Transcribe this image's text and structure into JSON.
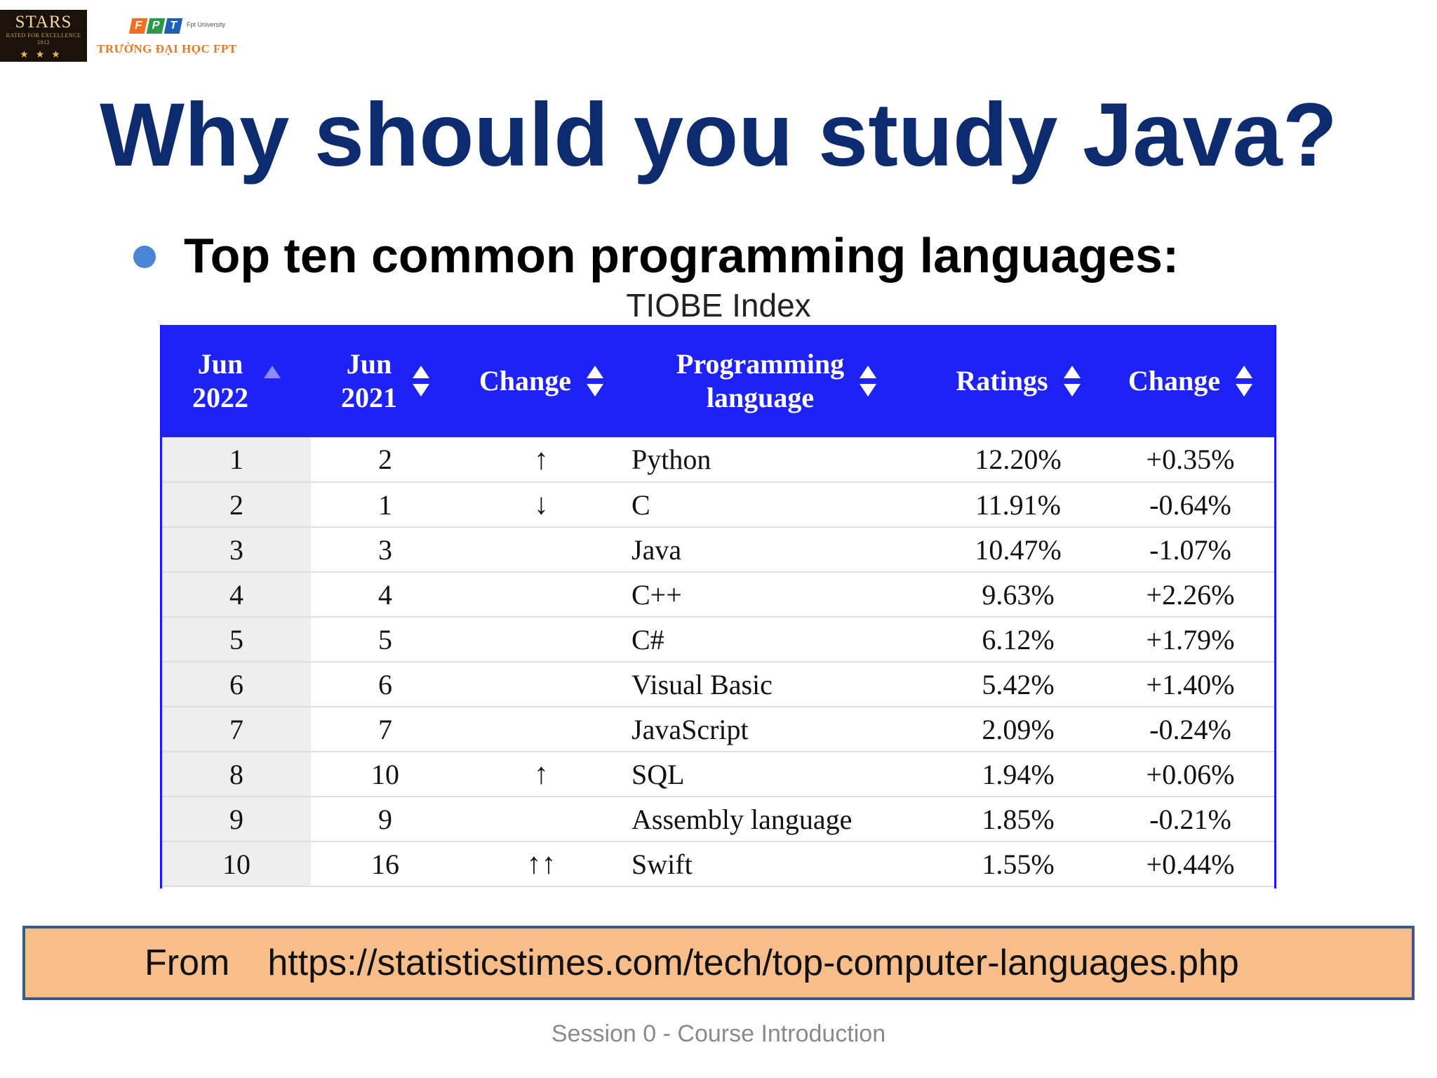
{
  "logos": {
    "stars": {
      "top": "STARS",
      "sub": "RATED FOR EXCELLENCE",
      "year": "2012",
      "stars": "★★★"
    },
    "fpt": {
      "mark": [
        "F",
        "P",
        "T"
      ],
      "uni": "Fpt University",
      "name": "TRƯỜNG ĐẠI HỌC FPT",
      "colors": [
        "#f26f21",
        "#2b9a48",
        "#1d5fb6"
      ]
    }
  },
  "slide": {
    "title": "Why should you study Java?",
    "subtitle": "Top ten common programming languages:",
    "caption": "TIOBE Index"
  },
  "table": {
    "headers": [
      {
        "lines": [
          "Jun",
          "2022"
        ],
        "sort": "asc"
      },
      {
        "lines": [
          "Jun",
          "2021"
        ],
        "sort": "both"
      },
      {
        "lines": [
          "Change"
        ],
        "sort": "both"
      },
      {
        "lines": [
          "Programming",
          "language"
        ],
        "sort": "both"
      },
      {
        "lines": [
          "Ratings"
        ],
        "sort": "both"
      },
      {
        "lines": [
          "Change"
        ],
        "sort": "both"
      }
    ],
    "rows": [
      {
        "jun2022": "1",
        "jun2021": "2",
        "change": "↑",
        "language": "Python",
        "rating": "12.20%",
        "delta": "+0.35%"
      },
      {
        "jun2022": "2",
        "jun2021": "1",
        "change": "↓",
        "language": "C",
        "rating": "11.91%",
        "delta": "-0.64%"
      },
      {
        "jun2022": "3",
        "jun2021": "3",
        "change": "",
        "language": "Java",
        "rating": "10.47%",
        "delta": "-1.07%"
      },
      {
        "jun2022": "4",
        "jun2021": "4",
        "change": "",
        "language": "C++",
        "rating": "9.63%",
        "delta": "+2.26%"
      },
      {
        "jun2022": "5",
        "jun2021": "5",
        "change": "",
        "language": "C#",
        "rating": "6.12%",
        "delta": "+1.79%"
      },
      {
        "jun2022": "6",
        "jun2021": "6",
        "change": "",
        "language": "Visual Basic",
        "rating": "5.42%",
        "delta": "+1.40%"
      },
      {
        "jun2022": "7",
        "jun2021": "7",
        "change": "",
        "language": "JavaScript",
        "rating": "2.09%",
        "delta": "-0.24%"
      },
      {
        "jun2022": "8",
        "jun2021": "10",
        "change": "↑",
        "language": "SQL",
        "rating": "1.94%",
        "delta": "+0.06%"
      },
      {
        "jun2022": "9",
        "jun2021": "9",
        "change": "",
        "language": "Assembly language",
        "rating": "1.85%",
        "delta": "-0.21%"
      },
      {
        "jun2022": "10",
        "jun2021": "16",
        "change": "↑↑",
        "language": "Swift",
        "rating": "1.55%",
        "delta": "+0.44%"
      }
    ]
  },
  "source": {
    "label": "From",
    "url": "https://statisticstimes.com/tech/top-computer-languages.php"
  },
  "footer": "Session 0 - Course Introduction",
  "colors": {
    "title": "#0d2b6e",
    "table_header": "#1e22f5",
    "source_box": "#f7be8c",
    "bullet": "#4a86d4"
  }
}
